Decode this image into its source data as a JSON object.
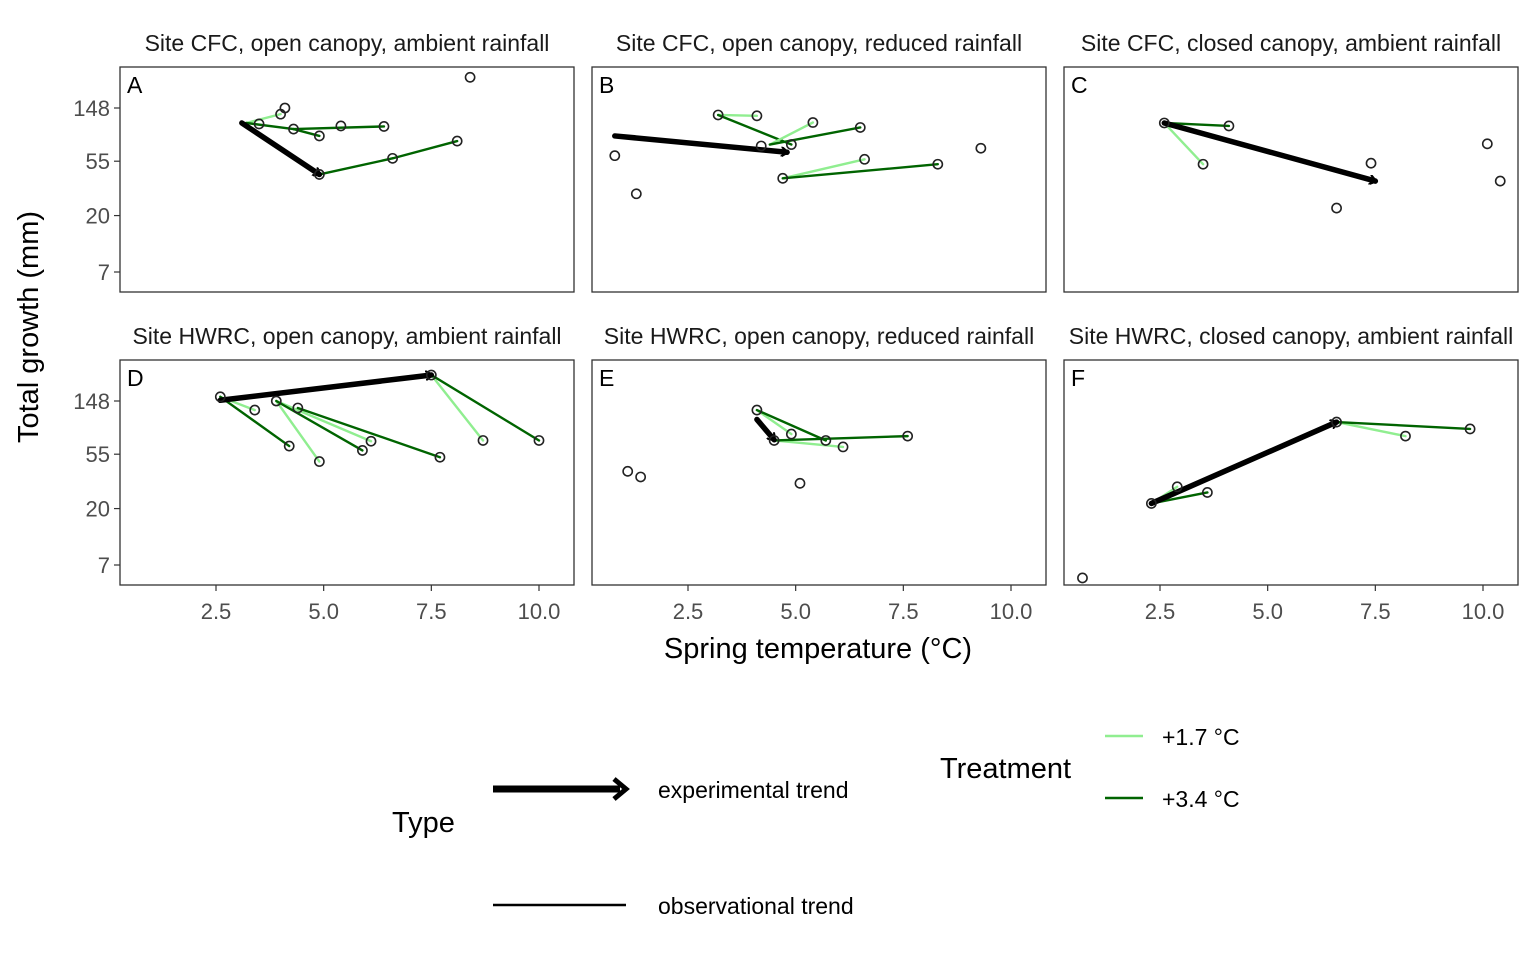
{
  "figure": {
    "ylabel": "Total growth (mm)",
    "xlabel": "Spring temperature (°C)"
  },
  "legend": {
    "type_title": "Type",
    "type_items": [
      "experimental trend",
      "observational trend"
    ],
    "treatment_title": "Treatment",
    "treatment_items": [
      "+1.7 °C",
      "+3.4 °C"
    ]
  },
  "colors": {
    "light_green": "#90EE90",
    "dark_green": "#006400",
    "arrow": "#000000",
    "panel_border": "#333333",
    "tick_text": "#4d4d4d"
  },
  "chart_data": [
    {
      "type": "scatter",
      "panel": "A",
      "title": "Site CFC, open canopy, ambient rainfall",
      "xlim": [
        0.3,
        11.0
      ],
      "ylim_log": [
        5,
        310
      ],
      "y_scale": "log",
      "xticks": [
        2.5,
        5.0,
        7.5,
        10.0
      ],
      "yticks": [
        7,
        20,
        55,
        148
      ],
      "points": [
        [
          4.1,
          148
        ],
        [
          4.0,
          132
        ],
        [
          3.5,
          110
        ],
        [
          4.3,
          100
        ],
        [
          5.4,
          106
        ],
        [
          6.4,
          105
        ],
        [
          4.9,
          88
        ],
        [
          8.1,
          80
        ],
        [
          6.6,
          58
        ],
        [
          4.9,
          43
        ],
        [
          8.4,
          262
        ]
      ],
      "lines": [
        {
          "treatment": "+1.7 °C",
          "from": [
            3.2,
            112
          ],
          "to": [
            4.0,
            132
          ]
        },
        {
          "treatment": "+3.4 °C",
          "from": [
            3.2,
            112
          ],
          "to": [
            4.3,
            100
          ]
        },
        {
          "treatment": "+3.4 °C",
          "from": [
            4.3,
            100
          ],
          "to": [
            6.4,
            105
          ]
        },
        {
          "treatment": "+3.4 °C",
          "from": [
            4.3,
            100
          ],
          "to": [
            4.9,
            88
          ]
        },
        {
          "treatment": "+3.4 °C",
          "from": [
            4.9,
            43
          ],
          "to": [
            6.6,
            58
          ]
        },
        {
          "treatment": "+3.4 °C",
          "from": [
            6.6,
            58
          ],
          "to": [
            8.1,
            80
          ]
        }
      ],
      "arrow": {
        "from": [
          3.1,
          112
        ],
        "to": [
          4.9,
          43
        ]
      }
    },
    {
      "type": "scatter",
      "panel": "B",
      "title": "Site CFC, open canopy, reduced rainfall",
      "xlim": [
        0.3,
        11.0
      ],
      "ylim_log": [
        5,
        310
      ],
      "y_scale": "log",
      "xticks": [
        2.5,
        5.0,
        7.5,
        10.0
      ],
      "yticks": [
        7,
        20,
        55,
        148
      ],
      "points": [
        [
          3.2,
          130
        ],
        [
          4.1,
          128
        ],
        [
          5.4,
          113
        ],
        [
          6.5,
          103
        ],
        [
          4.2,
          73
        ],
        [
          4.9,
          75
        ],
        [
          6.6,
          57
        ],
        [
          8.3,
          52
        ],
        [
          9.3,
          70
        ],
        [
          4.7,
          40
        ],
        [
          0.8,
          61
        ],
        [
          1.3,
          30
        ]
      ],
      "lines": [
        {
          "treatment": "+1.7 °C",
          "from": [
            3.2,
            130
          ],
          "to": [
            4.1,
            128
          ]
        },
        {
          "treatment": "+3.4 °C",
          "from": [
            3.2,
            130
          ],
          "to": [
            4.9,
            75
          ]
        },
        {
          "treatment": "+1.7 °C",
          "from": [
            4.4,
            75
          ],
          "to": [
            5.4,
            113
          ]
        },
        {
          "treatment": "+3.4 °C",
          "from": [
            4.4,
            75
          ],
          "to": [
            6.5,
            103
          ]
        },
        {
          "treatment": "+1.7 °C",
          "from": [
            4.7,
            40
          ],
          "to": [
            6.6,
            57
          ]
        },
        {
          "treatment": "+3.4 °C",
          "from": [
            4.7,
            40
          ],
          "to": [
            8.3,
            52
          ]
        }
      ],
      "arrow": {
        "from": [
          0.8,
          88
        ],
        "to": [
          4.8,
          65
        ]
      }
    },
    {
      "type": "scatter",
      "panel": "C",
      "title": "Site CFC, closed canopy, ambient rainfall",
      "xlim": [
        0.3,
        11.0
      ],
      "ylim_log": [
        5,
        310
      ],
      "y_scale": "log",
      "xticks": [
        2.5,
        5.0,
        7.5,
        10.0
      ],
      "yticks": [
        7,
        20,
        55,
        148
      ],
      "points": [
        [
          2.6,
          112
        ],
        [
          4.1,
          106
        ],
        [
          3.5,
          52
        ],
        [
          7.4,
          53
        ],
        [
          6.6,
          23
        ],
        [
          10.1,
          76
        ],
        [
          10.4,
          38
        ]
      ],
      "lines": [
        {
          "treatment": "+1.7 °C",
          "from": [
            2.6,
            112
          ],
          "to": [
            3.5,
            52
          ]
        },
        {
          "treatment": "+3.4 °C",
          "from": [
            2.6,
            112
          ],
          "to": [
            4.1,
            106
          ]
        }
      ],
      "arrow": {
        "from": [
          2.6,
          112
        ],
        "to": [
          7.5,
          38
        ]
      }
    },
    {
      "type": "scatter",
      "panel": "D",
      "title": "Site HWRC, open canopy, ambient rainfall",
      "xlim": [
        0.3,
        11.0
      ],
      "ylim_log": [
        5,
        310
      ],
      "y_scale": "log",
      "xticks": [
        2.5,
        5.0,
        7.5,
        10.0
      ],
      "yticks": [
        7,
        20,
        55,
        148
      ],
      "points": [
        [
          2.6,
          160
        ],
        [
          3.4,
          125
        ],
        [
          4.2,
          64
        ],
        [
          4.9,
          48
        ],
        [
          3.9,
          148
        ],
        [
          4.4,
          130
        ],
        [
          6.1,
          70
        ],
        [
          5.9,
          59
        ],
        [
          7.5,
          240
        ],
        [
          8.7,
          71
        ],
        [
          10.0,
          71
        ],
        [
          7.7,
          52
        ]
      ],
      "lines": [
        {
          "treatment": "+1.7 °C",
          "from": [
            2.6,
            160
          ],
          "to": [
            3.4,
            125
          ]
        },
        {
          "treatment": "+3.4 °C",
          "from": [
            2.6,
            160
          ],
          "to": [
            4.2,
            64
          ]
        },
        {
          "treatment": "+1.7 °C",
          "from": [
            3.9,
            148
          ],
          "to": [
            4.9,
            48
          ]
        },
        {
          "treatment": "+1.7 °C",
          "from": [
            3.9,
            148
          ],
          "to": [
            6.1,
            70
          ]
        },
        {
          "treatment": "+3.4 °C",
          "from": [
            3.9,
            148
          ],
          "to": [
            5.9,
            59
          ]
        },
        {
          "treatment": "+3.4 °C",
          "from": [
            4.4,
            130
          ],
          "to": [
            7.7,
            52
          ]
        },
        {
          "treatment": "+1.7 °C",
          "from": [
            7.5,
            240
          ],
          "to": [
            8.7,
            71
          ]
        },
        {
          "treatment": "+3.4 °C",
          "from": [
            7.5,
            240
          ],
          "to": [
            10.0,
            71
          ]
        }
      ],
      "arrow": {
        "from": [
          2.6,
          150
        ],
        "to": [
          7.5,
          240
        ]
      }
    },
    {
      "type": "scatter",
      "panel": "E",
      "title": "Site HWRC, open canopy, reduced rainfall",
      "xlim": [
        0.3,
        11.0
      ],
      "ylim_log": [
        5,
        310
      ],
      "y_scale": "log",
      "xticks": [
        2.5,
        5.0,
        7.5,
        10.0
      ],
      "yticks": [
        7,
        20,
        55,
        148
      ],
      "points": [
        [
          4.1,
          125
        ],
        [
          4.5,
          71
        ],
        [
          4.9,
          80
        ],
        [
          5.7,
          71
        ],
        [
          6.1,
          63
        ],
        [
          7.6,
          77
        ],
        [
          1.1,
          40
        ],
        [
          1.4,
          36
        ],
        [
          5.1,
          32
        ]
      ],
      "lines": [
        {
          "treatment": "+1.7 °C",
          "from": [
            4.1,
            125
          ],
          "to": [
            4.9,
            80
          ]
        },
        {
          "treatment": "+3.4 °C",
          "from": [
            4.1,
            125
          ],
          "to": [
            5.7,
            71
          ]
        },
        {
          "treatment": "+1.7 °C",
          "from": [
            4.5,
            71
          ],
          "to": [
            6.1,
            63
          ]
        },
        {
          "treatment": "+3.4 °C",
          "from": [
            4.5,
            71
          ],
          "to": [
            7.6,
            77
          ]
        }
      ],
      "arrow": {
        "from": [
          4.1,
          105
        ],
        "to": [
          4.5,
          72
        ]
      }
    },
    {
      "type": "scatter",
      "panel": "F",
      "title": "Site HWRC, closed canopy, ambient rainfall",
      "xlim": [
        0.3,
        11.0
      ],
      "ylim_log": [
        5,
        310
      ],
      "y_scale": "log",
      "xticks": [
        2.5,
        5.0,
        7.5,
        10.0
      ],
      "yticks": [
        7,
        20,
        55,
        148
      ],
      "points": [
        [
          2.3,
          22
        ],
        [
          2.9,
          30
        ],
        [
          3.6,
          27
        ],
        [
          6.6,
          100
        ],
        [
          8.2,
          77
        ],
        [
          9.7,
          88
        ],
        [
          0.7,
          5.5
        ]
      ],
      "lines": [
        {
          "treatment": "+1.7 °C",
          "from": [
            2.3,
            22
          ],
          "to": [
            2.9,
            30
          ]
        },
        {
          "treatment": "+3.4 °C",
          "from": [
            2.3,
            22
          ],
          "to": [
            3.6,
            27
          ]
        },
        {
          "treatment": "+1.7 °C",
          "from": [
            6.6,
            100
          ],
          "to": [
            8.2,
            77
          ]
        },
        {
          "treatment": "+3.4 °C",
          "from": [
            6.6,
            100
          ],
          "to": [
            9.7,
            88
          ]
        }
      ],
      "arrow": {
        "from": [
          2.3,
          22
        ],
        "to": [
          6.6,
          100
        ]
      }
    }
  ]
}
